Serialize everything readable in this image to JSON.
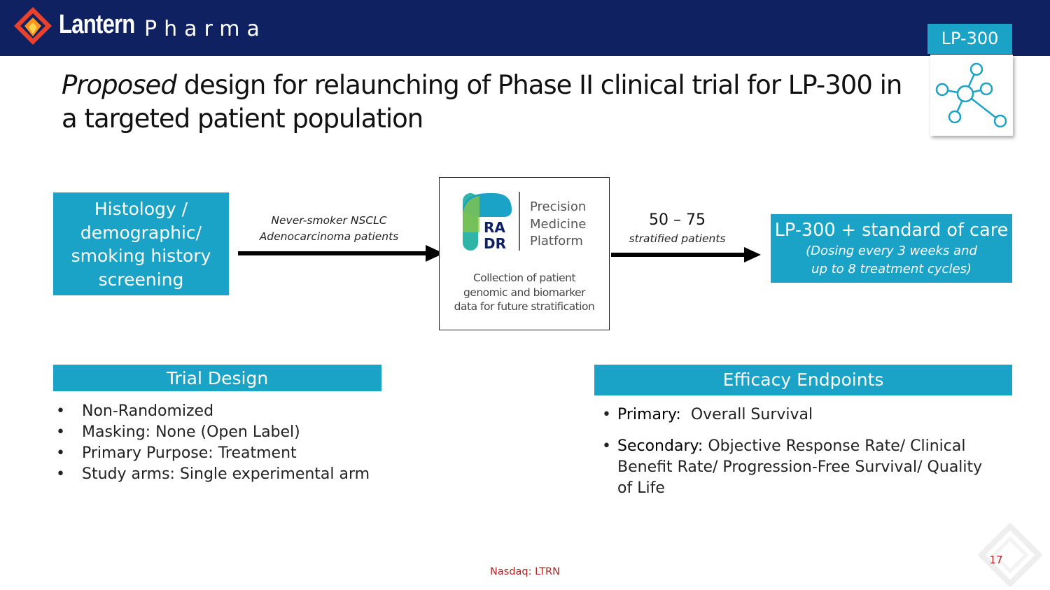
{
  "header": {
    "brand_name": "Lantern",
    "brand_sub": "Pharma",
    "program_tag": "LP-300",
    "colors": {
      "header_bg": "#0f2160",
      "accent": "#1aa3c6",
      "logo_outer": "#e8412c",
      "logo_inner": "#f7931e"
    }
  },
  "title": {
    "italic_part": "Proposed",
    "rest": " design for relaunching of Phase II clinical trial for LP-300 in a targeted patient population"
  },
  "flow": {
    "screening_box": "Histology / demographic/ smoking history screening",
    "arrow1_label_line1": "Never-smoker NSCLC",
    "arrow1_label_line2": "Adenocarcinoma patients",
    "radr": {
      "logo_text_line1": "RA",
      "logo_text_line2": "DR",
      "platform_line1": "Precision",
      "platform_line2": "Medicine",
      "platform_line3": "Platform",
      "caption_line1": "Collection of patient",
      "caption_line2": "genomic and biomarker",
      "caption_line3": "data for future stratification"
    },
    "arrow2_count": "50 – 75",
    "arrow2_label": "stratified patients",
    "treatment_title": "LP-300 + standard of care",
    "treatment_detail_line1": "(Dosing every 3 weeks and",
    "treatment_detail_line2": "up to 8 treatment cycles)"
  },
  "trial_design": {
    "header": "Trial Design",
    "items": [
      "Non-Randomized",
      "Masking: None (Open Label)",
      "Primary Purpose: Treatment",
      "Study arms: Single experimental arm"
    ]
  },
  "efficacy": {
    "header": "Efficacy Endpoints",
    "items": [
      {
        "key": "Primary:",
        "text": "  Overall Survival"
      },
      {
        "key": "Secondary:",
        "text": " Objective Response Rate/ Clinical Benefit Rate/ Progression-Free Survival/ Quality of Life"
      }
    ]
  },
  "footer": {
    "ticker": "Nasdaq: LTRN",
    "page_number": "17"
  },
  "icons": {
    "logo": "lantern-diamond-icon",
    "program": "molecule-network-icon",
    "corner": "faded-diamond-icon"
  }
}
